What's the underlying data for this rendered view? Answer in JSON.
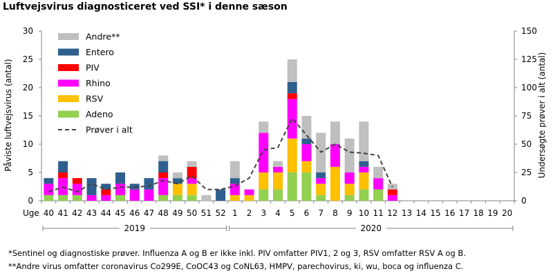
{
  "chart_data": {
    "type": "bar",
    "title": "Luftvejsvirus diagnosticeret ved SSI* i denne sæson",
    "ylabel": "Påviste luftvejsvirus (antal)",
    "y2label": "Undersøgte prøver i alt (antal)",
    "x_prefix": "Uge",
    "ylim": [
      0,
      30
    ],
    "y2lim": [
      0,
      150
    ],
    "yticks": [
      0,
      5,
      10,
      15,
      20,
      25,
      30
    ],
    "y2ticks": [
      0,
      25,
      50,
      75,
      100,
      125,
      150
    ],
    "categories": [
      "40",
      "41",
      "42",
      "43",
      "44",
      "45",
      "46",
      "47",
      "48",
      "49",
      "50",
      "51",
      "52",
      "1",
      "2",
      "3",
      "4",
      "5",
      "6",
      "7",
      "8",
      "9",
      "10",
      "11",
      "12",
      "13",
      "14",
      "15",
      "16",
      "17",
      "18",
      "19",
      "20"
    ],
    "year_groups": [
      {
        "label": "2019",
        "from": 0,
        "to": 12
      },
      {
        "label": "2020",
        "from": 13,
        "to": 32
      }
    ],
    "series": [
      {
        "name": "Adeno",
        "color": "#92d050",
        "values": [
          1,
          1,
          1,
          0,
          0,
          1,
          0,
          0,
          1,
          1,
          1,
          0,
          0,
          0,
          0,
          2,
          2,
          5,
          5,
          1,
          0,
          1,
          2,
          2,
          0,
          0,
          0,
          0,
          0,
          0,
          0,
          0,
          0
        ]
      },
      {
        "name": "RSV",
        "color": "#ffc000",
        "values": [
          0,
          0,
          0,
          0,
          0,
          0,
          0,
          0,
          0,
          2,
          2,
          0,
          0,
          1,
          1,
          3,
          3,
          6,
          2,
          2,
          6,
          2,
          3,
          0,
          0,
          0,
          0,
          0,
          0,
          0,
          0,
          0,
          0
        ]
      },
      {
        "name": "Rhino",
        "color": "#ff00ff",
        "values": [
          2,
          3,
          2,
          1,
          1,
          2,
          2,
          2,
          3,
          0,
          1,
          0,
          0,
          2,
          1,
          7,
          1,
          7,
          3,
          1,
          4,
          2,
          1,
          2,
          1,
          0,
          0,
          0,
          0,
          0,
          0,
          0,
          0
        ]
      },
      {
        "name": "PIV",
        "color": "#ff0000",
        "values": [
          0,
          1,
          1,
          0,
          1,
          0,
          0,
          0,
          1,
          0,
          2,
          0,
          0,
          0,
          0,
          0,
          0,
          1,
          0,
          0,
          0,
          0,
          0,
          0,
          1,
          0,
          0,
          0,
          0,
          0,
          0,
          0,
          0
        ]
      },
      {
        "name": "Entero",
        "color": "#2e5f8e",
        "values": [
          1,
          2,
          0,
          3,
          1,
          2,
          1,
          2,
          2,
          1,
          0,
          0,
          2,
          1,
          0,
          0,
          0,
          2,
          1,
          1,
          0,
          0,
          1,
          0,
          0,
          0,
          0,
          0,
          0,
          0,
          0,
          0,
          0
        ]
      },
      {
        "name": "Andre**",
        "color": "#bfbfbf",
        "values": [
          0,
          0,
          0,
          0,
          0,
          0,
          0,
          0,
          1,
          1,
          1,
          1,
          0,
          3,
          0,
          2,
          1,
          4,
          4,
          7,
          4,
          6,
          7,
          2,
          1,
          0,
          0,
          0,
          0,
          0,
          0,
          0,
          0
        ]
      }
    ],
    "line": {
      "name": "Prøver i alt",
      "color": "#404040",
      "axis": "y2",
      "values": [
        8,
        12,
        8,
        15,
        10,
        12,
        12,
        13,
        18,
        15,
        22,
        10,
        10,
        13,
        20,
        45,
        47,
        73,
        58,
        43,
        50,
        43,
        42,
        40,
        12,
        null,
        null,
        null,
        null,
        null,
        null,
        null,
        null
      ]
    },
    "legend": [
      "Andre**",
      "Entero",
      "PIV",
      "Rhino",
      "RSV",
      "Adeno",
      "Prøver i alt"
    ],
    "legend_position": "top-left"
  },
  "footnotes": [
    "*Sentinel og diagnostiske prøver. Influenza A og B er ikke inkl.  PIV omfatter PIV1, 2 og 3, RSV omfatter RSV A og B.",
    "**Andre virus omfatter coronavirus Co299E, CoOC43 og CoNL63, HMPV, parechovirus, ki, wu, boca og influenza C."
  ]
}
